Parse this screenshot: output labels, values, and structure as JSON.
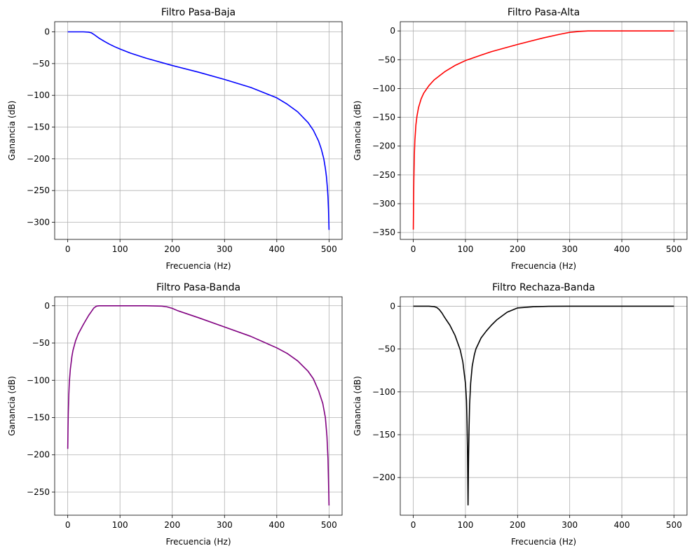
{
  "chart_data": [
    {
      "type": "line",
      "title": "Filtro Pasa-Baja",
      "xlabel": "Frecuencia (Hz)",
      "ylabel": "Ganancia (dB)",
      "xlim": [
        -25,
        525
      ],
      "ylim": [
        -327,
        16
      ],
      "xticks": [
        0,
        100,
        200,
        300,
        400,
        500
      ],
      "yticks": [
        0,
        -50,
        -100,
        -150,
        -200,
        -250,
        -300
      ],
      "grid": true,
      "series": [
        {
          "color": "#0000ff",
          "x": [
            0,
            20,
            30,
            40,
            45,
            50,
            55,
            60,
            70,
            80,
            90,
            100,
            120,
            150,
            200,
            250,
            300,
            350,
            400,
            420,
            440,
            460,
            470,
            480,
            485,
            490,
            493,
            495,
            497,
            498,
            499,
            499.5,
            500
          ],
          "y": [
            0,
            0,
            0,
            -0.5,
            -1.5,
            -4,
            -7,
            -10,
            -15,
            -19.5,
            -23.5,
            -27,
            -33.5,
            -41.5,
            -53,
            -63.5,
            -75,
            -87.5,
            -104,
            -114,
            -126,
            -143,
            -155,
            -172,
            -184,
            -200,
            -215,
            -228,
            -247,
            -260,
            -280,
            -295,
            -312
          ]
        }
      ]
    },
    {
      "type": "line",
      "title": "Filtro Pasa-Alta",
      "xlabel": "Frecuencia (Hz)",
      "ylabel": "Ganancia (dB)",
      "xlim": [
        -25,
        525
      ],
      "ylim": [
        -362,
        16
      ],
      "xticks": [
        0,
        100,
        200,
        300,
        400,
        500
      ],
      "yticks": [
        0,
        -50,
        -100,
        -150,
        -200,
        -250,
        -300,
        -350
      ],
      "grid": true,
      "series": [
        {
          "color": "#ff0000",
          "x": [
            0,
            0.5,
            1,
            2,
            3,
            5,
            7,
            10,
            15,
            20,
            30,
            40,
            50,
            60,
            80,
            100,
            130,
            150,
            200,
            250,
            280,
            300,
            320,
            335,
            350,
            400,
            450,
            500
          ],
          "y": [
            -345,
            -300,
            -260,
            -215,
            -190,
            -163,
            -148,
            -133,
            -118,
            -108,
            -95,
            -85,
            -78,
            -71,
            -60,
            -51.5,
            -42,
            -36,
            -23.5,
            -12,
            -6,
            -2.5,
            -0.8,
            0,
            0,
            0,
            0,
            0
          ]
        }
      ]
    },
    {
      "type": "line",
      "title": "Filtro Pasa-Banda",
      "xlabel": "Frecuencia (Hz)",
      "ylabel": "Ganancia (dB)",
      "xlim": [
        -25,
        525
      ],
      "ylim": [
        -281,
        12
      ],
      "xticks": [
        0,
        100,
        200,
        300,
        400,
        500
      ],
      "yticks": [
        0,
        -50,
        -100,
        -150,
        -200,
        -250
      ],
      "grid": true,
      "series": [
        {
          "color": "#800080",
          "x": [
            0,
            0.5,
            1,
            2,
            3,
            5,
            8,
            10,
            15,
            20,
            30,
            40,
            50,
            55,
            60,
            100,
            150,
            180,
            190,
            200,
            210,
            250,
            300,
            350,
            400,
            420,
            440,
            460,
            470,
            480,
            488,
            493,
            496,
            498,
            499,
            500
          ],
          "y": [
            -192,
            -165,
            -145,
            -120,
            -103,
            -85,
            -68,
            -60,
            -47,
            -38,
            -25,
            -13,
            -3,
            -0.5,
            0,
            0,
            0,
            -0.5,
            -1.5,
            -3.5,
            -6.5,
            -16,
            -28.5,
            -41,
            -56.5,
            -64,
            -74,
            -88,
            -98,
            -114,
            -131,
            -150,
            -175,
            -205,
            -235,
            -268
          ]
        }
      ]
    },
    {
      "type": "line",
      "title": "Filtro Rechaza-Banda",
      "xlabel": "Frecuencia (Hz)",
      "ylabel": "Ganancia (dB)",
      "xlim": [
        -25,
        525
      ],
      "ylim": [
        -244,
        11
      ],
      "xticks": [
        0,
        100,
        200,
        300,
        400,
        500
      ],
      "yticks": [
        0,
        -50,
        -100,
        -150,
        -200
      ],
      "grid": true,
      "series": [
        {
          "color": "#000000",
          "x": [
            0,
            30,
            40,
            45,
            50,
            55,
            60,
            70,
            80,
            90,
            95,
            100,
            102,
            103,
            104,
            105,
            106,
            107,
            108,
            110,
            113,
            117,
            120,
            130,
            140,
            150,
            160,
            180,
            200,
            230,
            260,
            300,
            400,
            500
          ],
          "y": [
            0,
            0,
            -0.5,
            -1.5,
            -4,
            -8,
            -13,
            -22,
            -34,
            -51,
            -65,
            -90,
            -110,
            -135,
            -170,
            -232,
            -175,
            -140,
            -115,
            -90,
            -70,
            -57,
            -50,
            -37,
            -29,
            -22,
            -16,
            -7,
            -2,
            -0.6,
            -0.1,
            0,
            0,
            0
          ]
        }
      ]
    }
  ]
}
